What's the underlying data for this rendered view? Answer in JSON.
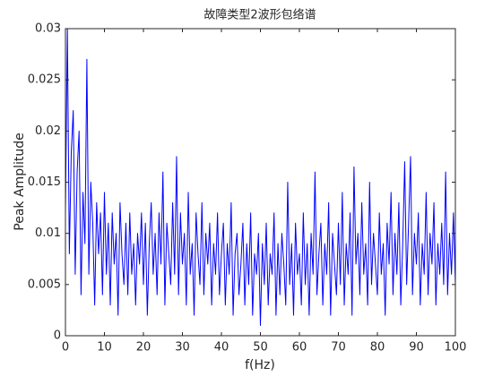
{
  "chart_data": {
    "type": "line",
    "title": "故障类型2波形包络谱",
    "xlabel": "f(Hz)",
    "ylabel": "Peak Amplitude",
    "x": [
      0,
      0.5,
      1,
      1.5,
      2,
      2.5,
      3,
      3.5,
      4,
      4.5,
      5,
      5.5,
      6,
      6.5,
      7,
      7.5,
      8,
      8.5,
      9,
      9.5,
      10,
      10.5,
      11,
      11.5,
      12,
      12.5,
      13,
      13.5,
      14,
      14.5,
      15,
      15.5,
      16,
      16.5,
      17,
      17.5,
      18,
      18.5,
      19,
      19.5,
      20,
      20.5,
      21,
      21.5,
      22,
      22.5,
      23,
      23.5,
      24,
      24.5,
      25,
      25.5,
      26,
      26.5,
      27,
      27.5,
      28,
      28.5,
      29,
      29.5,
      30,
      30.5,
      31,
      31.5,
      32,
      32.5,
      33,
      33.5,
      34,
      34.5,
      35,
      35.5,
      36,
      36.5,
      37,
      37.5,
      38,
      38.5,
      39,
      39.5,
      40,
      40.5,
      41,
      41.5,
      42,
      42.5,
      43,
      43.5,
      44,
      44.5,
      45,
      45.5,
      46,
      46.5,
      47,
      47.5,
      48,
      48.5,
      49,
      49.5,
      50,
      50.5,
      51,
      51.5,
      52,
      52.5,
      53,
      53.5,
      54,
      54.5,
      55,
      55.5,
      56,
      56.5,
      57,
      57.5,
      58,
      58.5,
      59,
      59.5,
      60,
      60.5,
      61,
      61.5,
      62,
      62.5,
      63,
      63.5,
      64,
      64.5,
      65,
      65.5,
      66,
      66.5,
      67,
      67.5,
      68,
      68.5,
      69,
      69.5,
      70,
      70.5,
      71,
      71.5,
      72,
      72.5,
      73,
      73.5,
      74,
      74.5,
      75,
      75.5,
      76,
      76.5,
      77,
      77.5,
      78,
      78.5,
      79,
      79.5,
      80,
      80.5,
      81,
      81.5,
      82,
      82.5,
      83,
      83.5,
      84,
      84.5,
      85,
      85.5,
      86,
      86.5,
      87,
      87.5,
      88,
      88.5,
      89,
      89.5,
      90,
      90.5,
      91,
      91.5,
      92,
      92.5,
      93,
      93.5,
      94,
      94.5,
      95,
      95.5,
      96,
      96.5,
      97,
      97.5,
      98,
      98.5,
      99,
      99.5,
      100
    ],
    "series": [
      {
        "color": "#0000ff",
        "values": [
          0.012,
          0.03,
          0.008,
          0.018,
          0.022,
          0.006,
          0.016,
          0.02,
          0.004,
          0.014,
          0.009,
          0.027,
          0.006,
          0.015,
          0.011,
          0.003,
          0.013,
          0.008,
          0.012,
          0.004,
          0.014,
          0.006,
          0.011,
          0.003,
          0.012,
          0.007,
          0.01,
          0.002,
          0.013,
          0.008,
          0.005,
          0.011,
          0.004,
          0.012,
          0.006,
          0.009,
          0.003,
          0.01,
          0.007,
          0.012,
          0.005,
          0.011,
          0.002,
          0.009,
          0.013,
          0.006,
          0.01,
          0.004,
          0.012,
          0.007,
          0.016,
          0.003,
          0.011,
          0.008,
          0.005,
          0.013,
          0.006,
          0.0175,
          0.004,
          0.012,
          0.007,
          0.01,
          0.003,
          0.014,
          0.006,
          0.009,
          0.002,
          0.012,
          0.008,
          0.005,
          0.013,
          0.004,
          0.01,
          0.007,
          0.011,
          0.003,
          0.009,
          0.006,
          0.012,
          0.004,
          0.008,
          0.011,
          0.003,
          0.009,
          0.006,
          0.013,
          0.002,
          0.008,
          0.01,
          0.004,
          0.007,
          0.011,
          0.003,
          0.009,
          0.005,
          0.012,
          0.002,
          0.008,
          0.006,
          0.01,
          0.001,
          0.009,
          0.005,
          0.011,
          0.003,
          0.008,
          0.006,
          0.012,
          0.002,
          0.009,
          0.004,
          0.01,
          0.007,
          0.003,
          0.015,
          0.005,
          0.009,
          0.002,
          0.011,
          0.006,
          0.008,
          0.003,
          0.012,
          0.005,
          0.009,
          0.002,
          0.01,
          0.006,
          0.016,
          0.004,
          0.008,
          0.011,
          0.003,
          0.009,
          0.006,
          0.013,
          0.002,
          0.01,
          0.007,
          0.004,
          0.011,
          0.005,
          0.014,
          0.003,
          0.009,
          0.006,
          0.012,
          0.002,
          0.0165,
          0.007,
          0.01,
          0.004,
          0.013,
          0.006,
          0.009,
          0.003,
          0.015,
          0.005,
          0.01,
          0.007,
          0.004,
          0.012,
          0.006,
          0.009,
          0.002,
          0.011,
          0.007,
          0.014,
          0.004,
          0.01,
          0.006,
          0.013,
          0.003,
          0.009,
          0.017,
          0.005,
          0.011,
          0.0175,
          0.004,
          0.01,
          0.007,
          0.012,
          0.003,
          0.009,
          0.006,
          0.014,
          0.004,
          0.01,
          0.007,
          0.013,
          0.003,
          0.009,
          0.006,
          0.011,
          0.005,
          0.016,
          0.004,
          0.01,
          0.006,
          0.012,
          0.005
        ]
      }
    ],
    "xlim": [
      0,
      100
    ],
    "xticks": [
      0,
      10,
      20,
      30,
      40,
      50,
      60,
      70,
      80,
      90,
      100
    ],
    "ylim": [
      0,
      0.03
    ],
    "yticks": [
      0,
      0.005,
      0.01,
      0.015,
      0.02,
      0.025,
      0.03
    ]
  }
}
